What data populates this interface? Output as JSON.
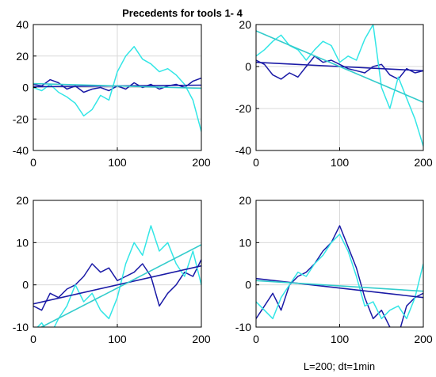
{
  "figure": {
    "title": "Precedents for tools 1- 4",
    "note": "L=200; dt=1min"
  },
  "colors": {
    "series_dark": "#1a1aa6",
    "series_light": "#33e6e6",
    "trend_dark": "#1a1aa6",
    "trend_light": "#33cccc"
  },
  "chart_data": [
    {
      "type": "line",
      "panel": 1,
      "xlim": [
        0,
        200
      ],
      "ylim": [
        -40,
        40
      ],
      "xticks": [
        0,
        100,
        200
      ],
      "yticks": [
        -40,
        -20,
        0,
        20,
        40
      ],
      "grid": true,
      "series": [
        {
          "color": "series_dark",
          "x": [
            0,
            10,
            20,
            30,
            40,
            50,
            60,
            70,
            80,
            90,
            100,
            110,
            120,
            130,
            140,
            150,
            160,
            170,
            180,
            190,
            200
          ],
          "y": [
            2,
            1,
            5,
            3,
            -1,
            1,
            -3,
            -1,
            0,
            -2,
            1,
            -1,
            3,
            0,
            2,
            -1,
            1,
            2,
            0,
            4,
            6
          ]
        },
        {
          "color": "series_light",
          "x": [
            0,
            10,
            20,
            30,
            40,
            50,
            60,
            70,
            80,
            90,
            100,
            110,
            120,
            130,
            140,
            150,
            160,
            170,
            180,
            190,
            200
          ],
          "y": [
            0,
            -2,
            2,
            -3,
            -6,
            -10,
            -18,
            -14,
            -5,
            -8,
            10,
            20,
            26,
            18,
            15,
            10,
            12,
            8,
            2,
            -8,
            -28
          ]
        },
        {
          "color": "trend_dark",
          "x": [
            0,
            200
          ],
          "y": [
            0.5,
            1.5
          ]
        },
        {
          "color": "trend_light",
          "x": [
            0,
            200
          ],
          "y": [
            2.5,
            -0.5
          ]
        }
      ]
    },
    {
      "type": "line",
      "panel": 2,
      "xlim": [
        0,
        200
      ],
      "ylim": [
        -40,
        20
      ],
      "xticks": [
        0,
        100,
        200
      ],
      "yticks": [
        -40,
        -20,
        0,
        20
      ],
      "grid": true,
      "series": [
        {
          "color": "series_dark",
          "x": [
            0,
            10,
            20,
            30,
            40,
            50,
            60,
            70,
            80,
            90,
            100,
            110,
            120,
            130,
            140,
            150,
            160,
            170,
            180,
            190,
            200
          ],
          "y": [
            3,
            1,
            -4,
            -6,
            -3,
            -5,
            0,
            5,
            2,
            3,
            1,
            -1,
            -2,
            -3,
            0,
            1,
            -4,
            -6,
            -1,
            -3,
            -2
          ]
        },
        {
          "color": "series_light",
          "x": [
            0,
            10,
            20,
            30,
            40,
            50,
            60,
            70,
            80,
            90,
            100,
            110,
            120,
            130,
            140,
            150,
            160,
            170,
            180,
            190,
            200
          ],
          "y": [
            5,
            8,
            12,
            15,
            10,
            8,
            3,
            8,
            12,
            10,
            2,
            5,
            3,
            13,
            20,
            -10,
            -20,
            -5,
            -15,
            -25,
            -38
          ]
        },
        {
          "color": "trend_dark",
          "x": [
            0,
            200
          ],
          "y": [
            2,
            -2
          ]
        },
        {
          "color": "trend_light",
          "x": [
            0,
            200
          ],
          "y": [
            17,
            -17
          ]
        }
      ]
    },
    {
      "type": "line",
      "panel": 3,
      "xlim": [
        0,
        200
      ],
      "ylim": [
        -10,
        20
      ],
      "xticks": [
        0,
        100,
        200
      ],
      "yticks": [
        -10,
        0,
        10,
        20
      ],
      "grid": true,
      "series": [
        {
          "color": "series_dark",
          "x": [
            0,
            10,
            20,
            30,
            40,
            50,
            60,
            70,
            80,
            90,
            100,
            110,
            120,
            130,
            140,
            150,
            160,
            170,
            180,
            190,
            200
          ],
          "y": [
            -5,
            -6,
            -2,
            -3,
            -1,
            0,
            2,
            5,
            3,
            4,
            1,
            2,
            3,
            5,
            2,
            -5,
            -2,
            0,
            3,
            2,
            6
          ]
        },
        {
          "color": "series_light",
          "x": [
            0,
            10,
            20,
            30,
            40,
            50,
            60,
            70,
            80,
            90,
            100,
            110,
            120,
            130,
            140,
            150,
            160,
            170,
            180,
            190,
            200
          ],
          "y": [
            -11,
            -9,
            -12,
            -8,
            -5,
            0,
            -4,
            -2,
            -6,
            -8,
            -3,
            5,
            10,
            7,
            14,
            8,
            10,
            5,
            2,
            8,
            0
          ]
        },
        {
          "color": "trend_dark",
          "x": [
            0,
            200
          ],
          "y": [
            -4.5,
            4.5
          ]
        },
        {
          "color": "trend_light",
          "x": [
            0,
            200
          ],
          "y": [
            -11,
            9.5
          ]
        }
      ]
    },
    {
      "type": "line",
      "panel": 4,
      "xlim": [
        0,
        200
      ],
      "ylim": [
        -10,
        20
      ],
      "xticks": [
        0,
        100,
        200
      ],
      "yticks": [
        -10,
        0,
        10,
        20
      ],
      "grid": true,
      "series": [
        {
          "color": "series_dark",
          "x": [
            0,
            10,
            20,
            30,
            40,
            50,
            60,
            70,
            80,
            90,
            100,
            110,
            120,
            130,
            140,
            150,
            160,
            170,
            180,
            190,
            200
          ],
          "y": [
            -8,
            -5,
            -2,
            -6,
            0,
            2,
            3,
            5,
            8,
            10,
            14,
            9,
            4,
            -3,
            -8,
            -6,
            -10,
            -12,
            -5,
            -3,
            -2
          ]
        },
        {
          "color": "series_light",
          "x": [
            0,
            10,
            20,
            30,
            40,
            50,
            60,
            70,
            80,
            90,
            100,
            110,
            120,
            130,
            140,
            150,
            160,
            170,
            180,
            190,
            200
          ],
          "y": [
            -4,
            -6,
            -8,
            -3,
            0,
            3,
            2,
            5,
            7,
            10,
            12,
            8,
            2,
            -5,
            -4,
            -8,
            -6,
            -5,
            -8,
            -3,
            5
          ]
        },
        {
          "color": "trend_dark",
          "x": [
            0,
            200
          ],
          "y": [
            1.5,
            -3
          ]
        },
        {
          "color": "trend_light",
          "x": [
            0,
            200
          ],
          "y": [
            1,
            -1.5
          ]
        }
      ]
    }
  ]
}
